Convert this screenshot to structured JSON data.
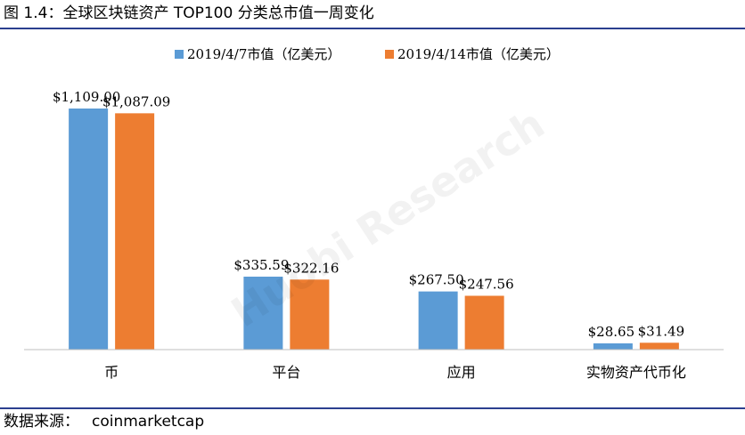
{
  "header": {
    "title": "图 1.4：全球区块链资产 TOP100 分类总市值一周变化"
  },
  "footer": {
    "source_label": "数据来源：",
    "source_value": "coinmarketcap"
  },
  "watermark": {
    "text": "Huobi Research"
  },
  "colors": {
    "rule": "#2b3f8f",
    "series_1": "#5b9bd5",
    "series_2": "#ed7d31"
  },
  "chart_data": {
    "type": "bar",
    "title": "",
    "xlabel": "",
    "ylabel": "",
    "categories": [
      "币",
      "平台",
      "应用",
      "实物资产代币化"
    ],
    "series": [
      {
        "name": "2019/4/7市值（亿美元）",
        "values": [
          1109.0,
          335.59,
          267.5,
          28.65
        ],
        "labels": [
          "$1,109.00",
          "$335.59",
          "$267.50",
          "$28.65"
        ]
      },
      {
        "name": "2019/4/14市值（亿美元）",
        "values": [
          1087.09,
          322.16,
          247.56,
          31.49
        ],
        "labels": [
          "$1,087.09",
          "$322.16",
          "$247.56",
          "$31.49"
        ]
      }
    ],
    "ylim": [
      0,
      1200
    ],
    "grid": false,
    "legend": "top-center"
  }
}
